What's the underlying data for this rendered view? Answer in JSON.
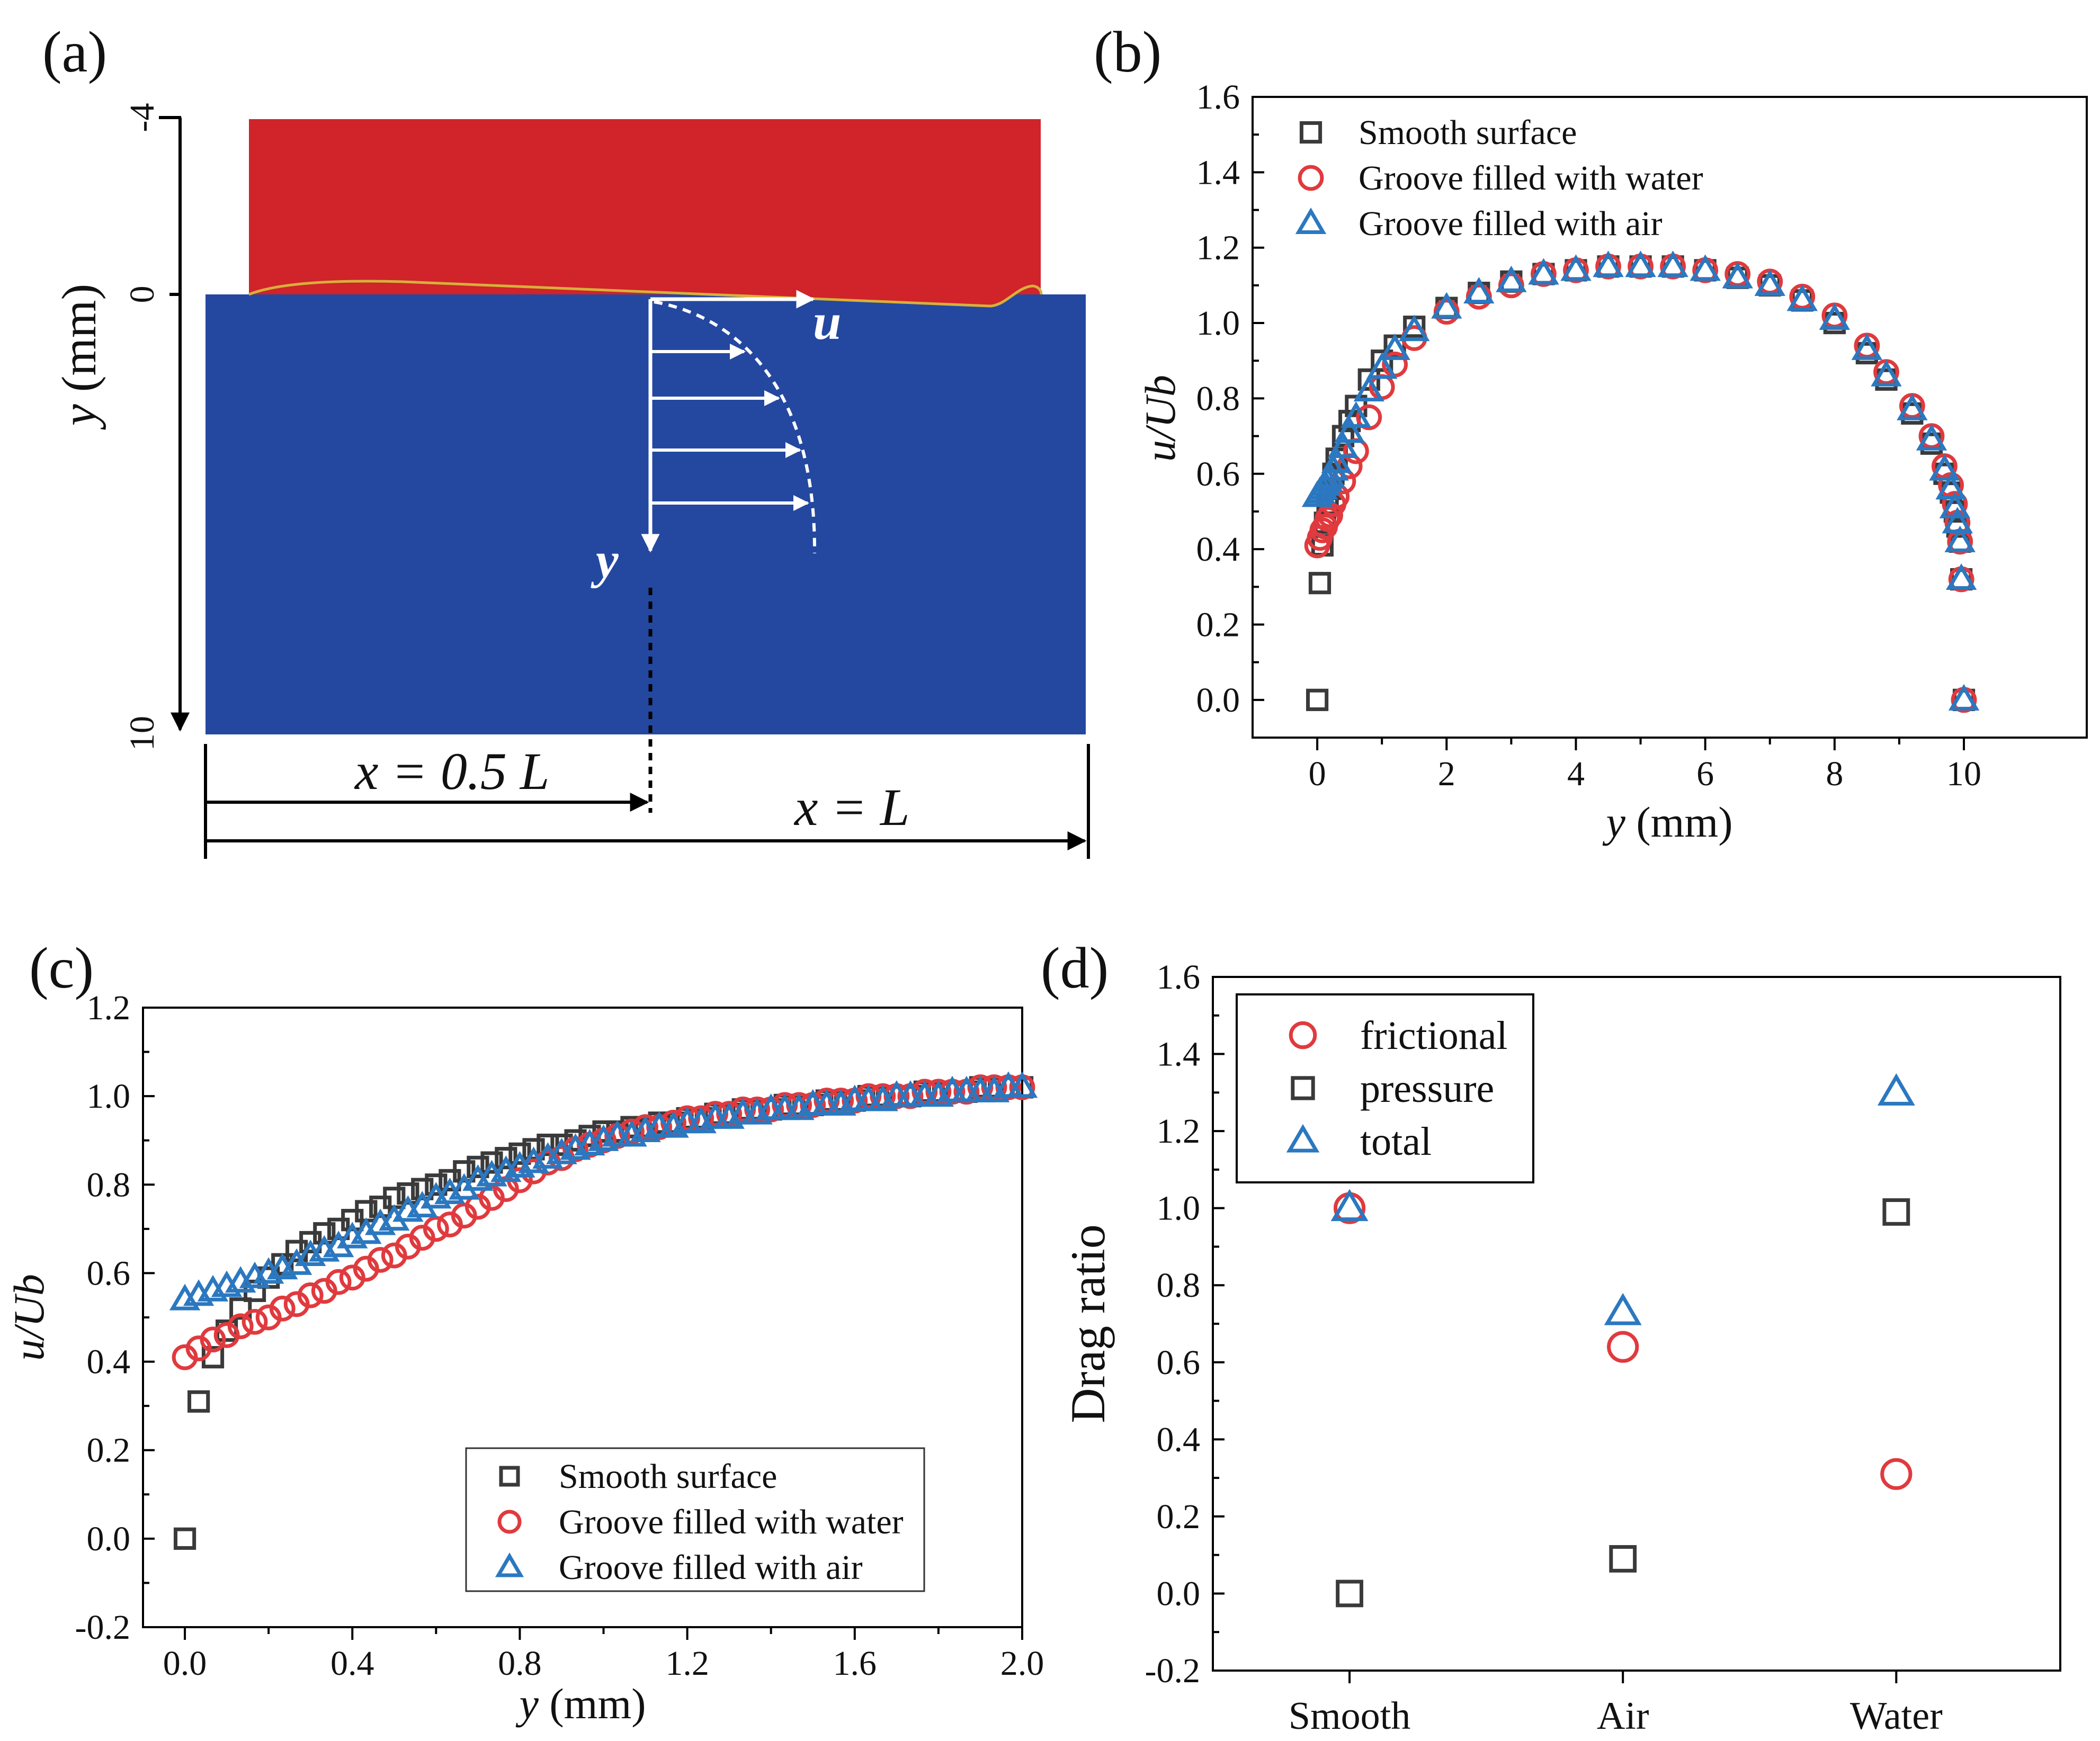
{
  "colors": {
    "smooth": "#3a3a3a",
    "water": "#e03a3e",
    "air": "#2b78c0",
    "fluid_top": "#d0232a",
    "fluid_bottom": "#2448a0"
  },
  "panel_a": {
    "label": "(a)",
    "axis_label_var": "y",
    "axis_label_unit": " (mm)",
    "tick_labels": [
      "-4",
      "0",
      "10"
    ],
    "velocity_label": "u",
    "y_label": "y",
    "x_mid_label": "x = 0.5 L",
    "x_end_label": "x = L"
  },
  "chart_data": [
    {
      "panel": "b",
      "panel_label": "(b)",
      "type": "scatter",
      "xlabel_var": "y",
      "xlabel_unit": " (mm)",
      "ylabel": "u/Ub",
      "xlim": [
        -1,
        11.9
      ],
      "ylim": [
        -0.1,
        1.6
      ],
      "xticks": [
        "0",
        "2",
        "4",
        "6",
        "8",
        "10"
      ],
      "yticks": [
        "0.0",
        "0.2",
        "0.4",
        "0.6",
        "0.8",
        "1.0",
        "1.2",
        "1.4",
        "1.6"
      ],
      "legend_position": "top-left",
      "series": [
        {
          "name": "Smooth surface",
          "marker": "square",
          "x": [
            0.0,
            0.04,
            0.08,
            0.12,
            0.16,
            0.2,
            0.25,
            0.3,
            0.4,
            0.5,
            0.6,
            0.8,
            1.0,
            1.2,
            1.5,
            2.0,
            2.5,
            3.0,
            3.5,
            4.0,
            4.5,
            5.0,
            5.5,
            6.0,
            6.5,
            7.0,
            7.5,
            8.0,
            8.5,
            8.8,
            9.2,
            9.5,
            9.7,
            9.8,
            9.86,
            9.9,
            9.94,
            9.96,
            10.0
          ],
          "y": [
            0.0,
            0.31,
            0.41,
            0.47,
            0.52,
            0.56,
            0.6,
            0.64,
            0.7,
            0.74,
            0.78,
            0.85,
            0.9,
            0.94,
            0.99,
            1.04,
            1.08,
            1.11,
            1.13,
            1.14,
            1.15,
            1.15,
            1.15,
            1.14,
            1.12,
            1.1,
            1.06,
            1.0,
            0.92,
            0.85,
            0.76,
            0.68,
            0.6,
            0.55,
            0.5,
            0.46,
            0.42,
            0.32,
            0.0
          ]
        },
        {
          "name": "Groove filled with water",
          "marker": "circle",
          "x": [
            0.0,
            0.04,
            0.08,
            0.12,
            0.16,
            0.2,
            0.25,
            0.3,
            0.4,
            0.5,
            0.6,
            0.8,
            1.0,
            1.2,
            1.5,
            2.0,
            2.5,
            3.0,
            3.5,
            4.0,
            4.5,
            5.0,
            5.5,
            6.0,
            6.5,
            7.0,
            7.5,
            8.0,
            8.5,
            8.8,
            9.2,
            9.5,
            9.7,
            9.8,
            9.86,
            9.9,
            9.94,
            9.96,
            10.0
          ],
          "y": [
            0.41,
            0.43,
            0.45,
            0.46,
            0.48,
            0.49,
            0.52,
            0.54,
            0.58,
            0.62,
            0.66,
            0.75,
            0.83,
            0.89,
            0.96,
            1.03,
            1.07,
            1.1,
            1.13,
            1.14,
            1.15,
            1.15,
            1.15,
            1.14,
            1.13,
            1.11,
            1.07,
            1.02,
            0.94,
            0.87,
            0.78,
            0.7,
            0.62,
            0.57,
            0.52,
            0.47,
            0.42,
            0.32,
            0.0
          ]
        },
        {
          "name": "Groove filled with air",
          "marker": "triangle",
          "x": [
            0.0,
            0.04,
            0.08,
            0.12,
            0.16,
            0.2,
            0.25,
            0.3,
            0.4,
            0.5,
            0.6,
            0.8,
            1.0,
            1.2,
            1.5,
            2.0,
            2.5,
            3.0,
            3.5,
            4.0,
            4.5,
            5.0,
            5.5,
            6.0,
            6.5,
            7.0,
            7.5,
            8.0,
            8.5,
            8.8,
            9.2,
            9.5,
            9.7,
            9.8,
            9.86,
            9.9,
            9.94,
            9.96,
            10.0
          ],
          "y": [
            0.54,
            0.55,
            0.56,
            0.57,
            0.58,
            0.59,
            0.61,
            0.63,
            0.67,
            0.71,
            0.75,
            0.82,
            0.88,
            0.93,
            0.98,
            1.04,
            1.08,
            1.11,
            1.13,
            1.14,
            1.15,
            1.15,
            1.15,
            1.14,
            1.12,
            1.1,
            1.06,
            1.01,
            0.93,
            0.86,
            0.77,
            0.69,
            0.61,
            0.56,
            0.51,
            0.47,
            0.42,
            0.32,
            0.0
          ]
        }
      ]
    },
    {
      "panel": "c",
      "panel_label": "(c)",
      "type": "scatter",
      "xlabel_var": "y",
      "xlabel_unit": " (mm)",
      "ylabel": "u/Ub",
      "xlim": [
        -0.1,
        2.0
      ],
      "ylim": [
        -0.2,
        1.2
      ],
      "xticks": [
        "0.0",
        "0.4",
        "0.8",
        "1.2",
        "1.6",
        "2.0"
      ],
      "yticks": [
        "-0.2",
        "0.0",
        "0.2",
        "0.4",
        "0.6",
        "0.8",
        "1.0",
        "1.2"
      ],
      "legend_position": "bottom-right",
      "series": [
        {
          "name": "Smooth surface",
          "marker": "square",
          "x": [
            0.0,
            0.033,
            0.067,
            0.1,
            0.133,
            0.167,
            0.2,
            0.233,
            0.267,
            0.3,
            0.333,
            0.367,
            0.4,
            0.433,
            0.467,
            0.5,
            0.533,
            0.567,
            0.6,
            0.633,
            0.667,
            0.7,
            0.733,
            0.767,
            0.8,
            0.833,
            0.867,
            0.9,
            0.933,
            0.967,
            1.0,
            1.033,
            1.067,
            1.1,
            1.133,
            1.167,
            1.2,
            1.233,
            1.267,
            1.3,
            1.333,
            1.367,
            1.4,
            1.433,
            1.467,
            1.5,
            1.533,
            1.567,
            1.6,
            1.633,
            1.667,
            1.7,
            1.733,
            1.767,
            1.8,
            1.833,
            1.867,
            1.9,
            1.933,
            1.967,
            2.0
          ],
          "y": [
            0.0,
            0.31,
            0.41,
            0.47,
            0.52,
            0.56,
            0.59,
            0.62,
            0.65,
            0.67,
            0.69,
            0.7,
            0.72,
            0.74,
            0.75,
            0.77,
            0.78,
            0.79,
            0.8,
            0.81,
            0.83,
            0.84,
            0.85,
            0.86,
            0.87,
            0.88,
            0.89,
            0.89,
            0.9,
            0.91,
            0.92,
            0.92,
            0.93,
            0.93,
            0.94,
            0.94,
            0.95,
            0.95,
            0.96,
            0.96,
            0.97,
            0.97,
            0.97,
            0.98,
            0.98,
            0.98,
            0.99,
            0.99,
            0.99,
            1.0,
            1.0,
            1.0,
            1.0,
            1.01,
            1.01,
            1.01,
            1.01,
            1.02,
            1.02,
            1.02,
            1.02
          ]
        },
        {
          "name": "Groove filled with water",
          "marker": "circle",
          "x": [
            0.0,
            0.033,
            0.067,
            0.1,
            0.133,
            0.167,
            0.2,
            0.233,
            0.267,
            0.3,
            0.333,
            0.367,
            0.4,
            0.433,
            0.467,
            0.5,
            0.533,
            0.567,
            0.6,
            0.633,
            0.667,
            0.7,
            0.733,
            0.767,
            0.8,
            0.833,
            0.867,
            0.9,
            0.933,
            0.967,
            1.0,
            1.033,
            1.067,
            1.1,
            1.133,
            1.167,
            1.2,
            1.233,
            1.267,
            1.3,
            1.333,
            1.367,
            1.4,
            1.433,
            1.467,
            1.5,
            1.533,
            1.567,
            1.6,
            1.633,
            1.667,
            1.7,
            1.733,
            1.767,
            1.8,
            1.833,
            1.867,
            1.9,
            1.933,
            1.967,
            2.0
          ],
          "y": [
            0.41,
            0.43,
            0.45,
            0.46,
            0.48,
            0.49,
            0.5,
            0.52,
            0.53,
            0.55,
            0.56,
            0.58,
            0.59,
            0.61,
            0.63,
            0.64,
            0.66,
            0.68,
            0.7,
            0.71,
            0.73,
            0.75,
            0.77,
            0.79,
            0.81,
            0.83,
            0.85,
            0.86,
            0.88,
            0.89,
            0.9,
            0.91,
            0.92,
            0.93,
            0.93,
            0.94,
            0.95,
            0.95,
            0.96,
            0.96,
            0.97,
            0.97,
            0.97,
            0.98,
            0.98,
            0.98,
            0.99,
            0.99,
            0.99,
            1.0,
            1.0,
            1.0,
            1.0,
            1.01,
            1.01,
            1.01,
            1.01,
            1.02,
            1.02,
            1.02,
            1.02
          ]
        },
        {
          "name": "Groove filled with air",
          "marker": "triangle",
          "x": [
            0.0,
            0.033,
            0.067,
            0.1,
            0.133,
            0.167,
            0.2,
            0.233,
            0.267,
            0.3,
            0.333,
            0.367,
            0.4,
            0.433,
            0.467,
            0.5,
            0.533,
            0.567,
            0.6,
            0.633,
            0.667,
            0.7,
            0.733,
            0.767,
            0.8,
            0.833,
            0.867,
            0.9,
            0.933,
            0.967,
            1.0,
            1.033,
            1.067,
            1.1,
            1.133,
            1.167,
            1.2,
            1.233,
            1.267,
            1.3,
            1.333,
            1.367,
            1.4,
            1.433,
            1.467,
            1.5,
            1.533,
            1.567,
            1.6,
            1.633,
            1.667,
            1.7,
            1.733,
            1.767,
            1.8,
            1.833,
            1.867,
            1.9,
            1.933,
            1.967,
            2.0
          ],
          "y": [
            0.54,
            0.55,
            0.56,
            0.57,
            0.58,
            0.59,
            0.6,
            0.61,
            0.62,
            0.64,
            0.65,
            0.66,
            0.68,
            0.69,
            0.71,
            0.72,
            0.74,
            0.75,
            0.77,
            0.78,
            0.79,
            0.81,
            0.82,
            0.83,
            0.84,
            0.85,
            0.86,
            0.87,
            0.88,
            0.89,
            0.9,
            0.91,
            0.91,
            0.92,
            0.93,
            0.93,
            0.94,
            0.94,
            0.95,
            0.95,
            0.96,
            0.96,
            0.97,
            0.97,
            0.97,
            0.98,
            0.98,
            0.98,
            0.99,
            0.99,
            0.99,
            1.0,
            1.0,
            1.0,
            1.0,
            1.01,
            1.01,
            1.01,
            1.01,
            1.02,
            1.02
          ]
        }
      ]
    },
    {
      "panel": "d",
      "panel_label": "(d)",
      "type": "scatter",
      "xlabel": "",
      "ylabel": "Drag ratio",
      "categories": [
        "Smooth",
        "Air",
        "Water"
      ],
      "xlim": [
        -0.5,
        2.6
      ],
      "ylim": [
        -0.2,
        1.6
      ],
      "yticks": [
        "-0.2",
        "0.0",
        "0.2",
        "0.4",
        "0.6",
        "0.8",
        "1.0",
        "1.2",
        "1.4",
        "1.6"
      ],
      "legend_position": "top-left",
      "series": [
        {
          "name": "frictional",
          "marker": "circle",
          "values": [
            1.0,
            0.64,
            0.31
          ]
        },
        {
          "name": "pressure",
          "marker": "square",
          "values": [
            0.0,
            0.09,
            0.99
          ]
        },
        {
          "name": "total",
          "marker": "triangle",
          "values": [
            1.0,
            0.73,
            1.3
          ]
        }
      ]
    }
  ]
}
